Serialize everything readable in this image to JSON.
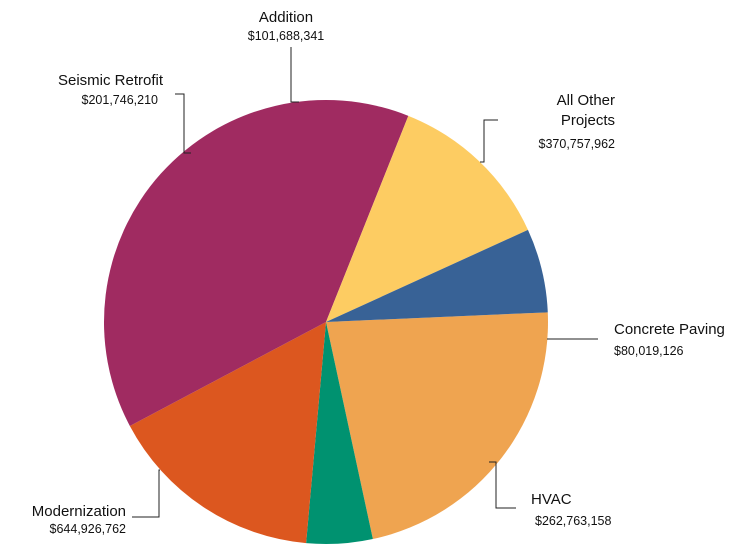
{
  "chart_data": {
    "type": "pie",
    "title": "",
    "slices": [
      {
        "label": "All Other Projects",
        "value": 370757962,
        "value_label": "$370,757,962",
        "color": "#EFA450"
      },
      {
        "label": "Concrete Paving",
        "value": 80019126,
        "value_label": "$80,019,126",
        "color": "#009270"
      },
      {
        "label": "HVAC",
        "value": 262763158,
        "value_label": "$262,763,158",
        "color": "#DC571F"
      },
      {
        "label": "Modernization",
        "value": 644926762,
        "value_label": "$644,926,762",
        "color": "#A02B61"
      },
      {
        "label": "Seismic Retrofit",
        "value": 201746210,
        "value_label": "$201,746,210",
        "color": "#FDCC62"
      },
      {
        "label": "Addition",
        "value": 101688341,
        "value_label": "$101,688,341",
        "color": "#386296"
      }
    ]
  }
}
